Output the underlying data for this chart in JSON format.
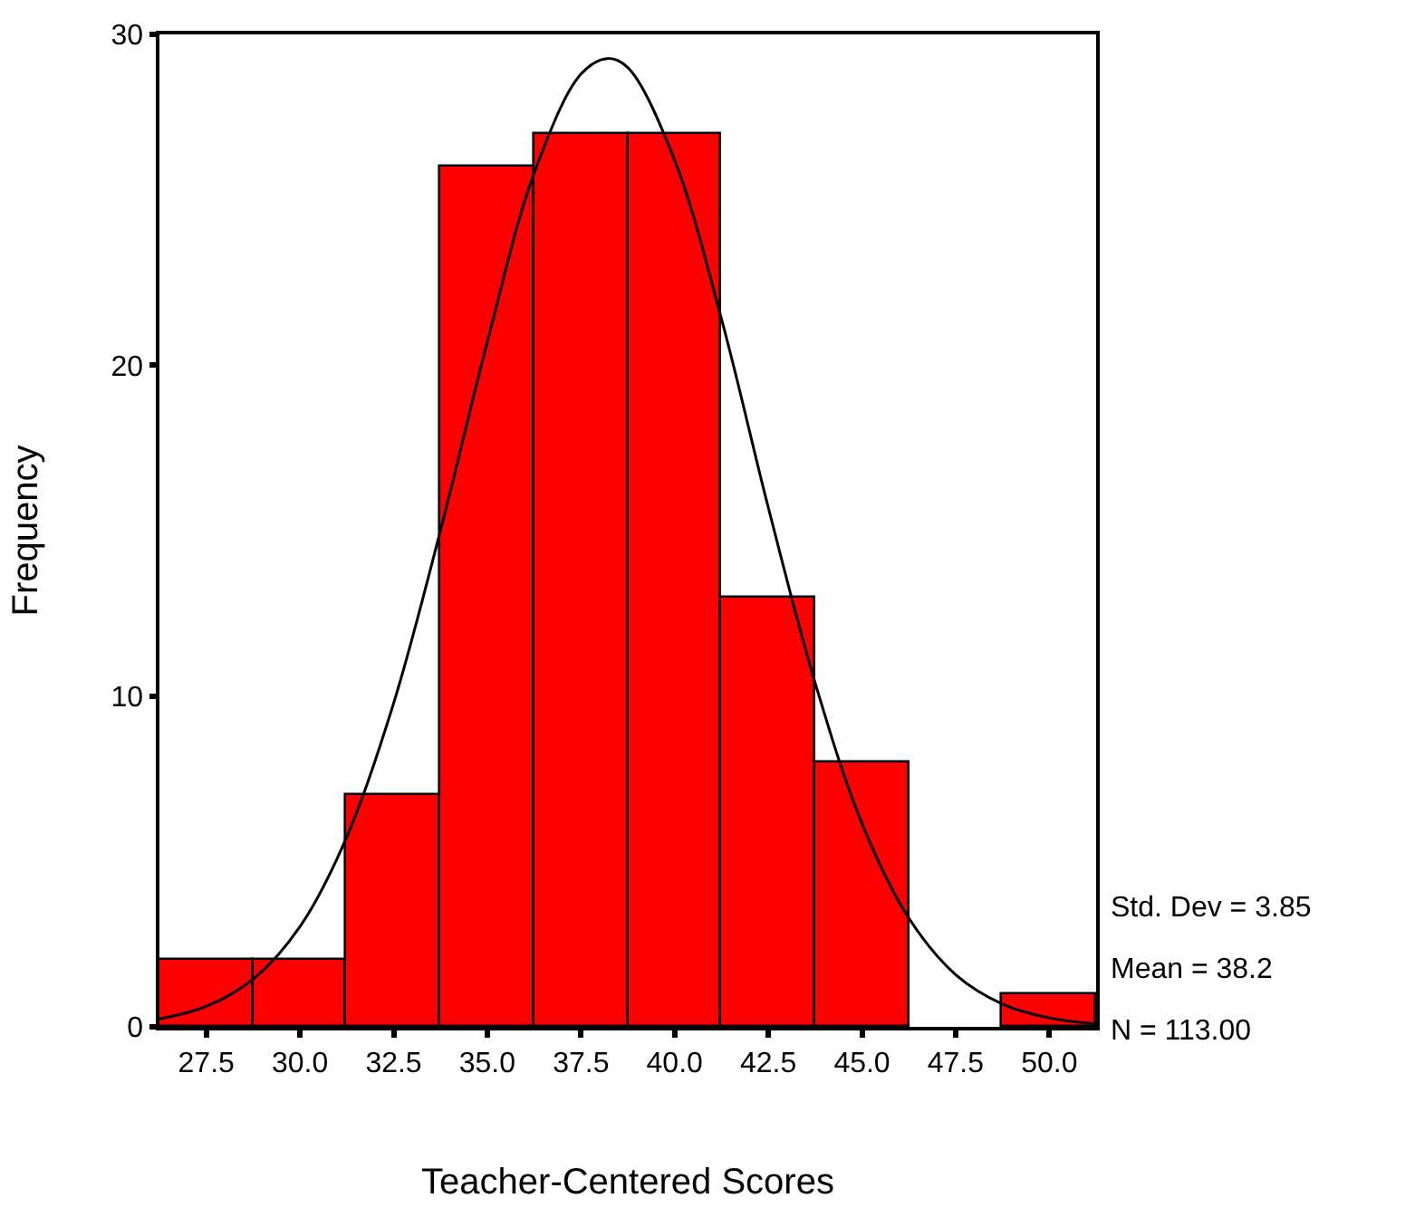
{
  "chart_data": {
    "type": "histogram",
    "xlabel": "Teacher-Centered Scores",
    "ylabel": "Frequency",
    "series": [
      {
        "bins": [
          26.25,
          28.75,
          31.25,
          33.75,
          36.25,
          38.75,
          41.25,
          43.75,
          46.25,
          48.75,
          51.25
        ],
        "values": [
          2,
          2,
          7,
          26,
          27,
          27,
          13,
          8,
          0,
          1
        ],
        "color": "#ff0000"
      },
      {
        "type": "line",
        "x": [
          26.25,
          27.5,
          28.75,
          30,
          31.25,
          32.5,
          33.75,
          35,
          36.25,
          37.5,
          38.2,
          38.75,
          40,
          41.25,
          42.5,
          43.75,
          45,
          46.25,
          47.5,
          48.75,
          50,
          51.25
        ],
        "values": [
          0.24,
          0.62,
          1.44,
          3.03,
          5.74,
          9.78,
          15.0,
          20.7,
          25.8,
          28.8,
          29.27,
          29.0,
          26.2,
          21.4,
          15.7,
          10.4,
          6.15,
          3.29,
          1.58,
          0.69,
          0.27,
          0.09
        ],
        "color": "#000000"
      }
    ],
    "xlim": [
      26.25,
      51.25
    ],
    "xticks": [
      {
        "value": 27.5,
        "label": "27.5"
      },
      {
        "value": 30,
        "label": "30.0"
      },
      {
        "value": 32.5,
        "label": "32.5"
      },
      {
        "value": 35,
        "label": "35.0"
      },
      {
        "value": 37.5,
        "label": "37.5"
      },
      {
        "value": 40,
        "label": "40.0"
      },
      {
        "value": 42.5,
        "label": "42.5"
      },
      {
        "value": 45,
        "label": "45.0"
      },
      {
        "value": 47.5,
        "label": "47.5"
      },
      {
        "value": 50,
        "label": "50.0"
      }
    ],
    "ylim": [
      0,
      30
    ],
    "yticks": [
      0,
      10,
      20,
      30
    ],
    "annotations": [
      "Std. Dev = 3.85",
      "Mean = 38.2",
      "N = 113.00"
    ],
    "marker": "none",
    "line_style": "solid"
  }
}
